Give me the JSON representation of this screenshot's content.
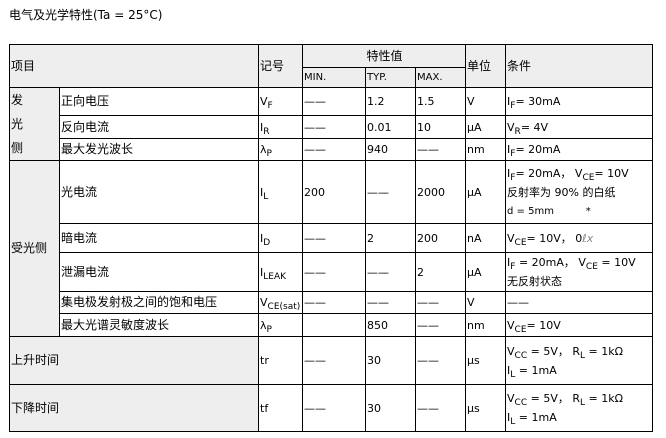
{
  "title": "电气及光学特性(Ta = 25°C)",
  "header": {
    "item": "项目",
    "symbol": "记号",
    "characteristic": "特性值",
    "min": "MIN.",
    "typ": "TYP.",
    "max": "MAX.",
    "unit": "单位",
    "condition": "条件"
  },
  "groups": {
    "emitter": "发\n光\n侧",
    "detector": "受光侧"
  },
  "rows": [
    {
      "group": "emitter",
      "item": "正向电压",
      "symbol": {
        "t": "V",
        "sub": "F"
      },
      "min": "——",
      "typ": "1.2",
      "max": "1.5",
      "unit": "V",
      "condition": [
        [
          {
            "t": "I"
          },
          {
            "sub": "F"
          },
          {
            "t": "= 30mA"
          }
        ]
      ]
    },
    {
      "group": "emitter",
      "item": "反向电流",
      "symbol": {
        "t": "I",
        "sub": "R"
      },
      "min": "——",
      "typ": "0.01",
      "max": "10",
      "unit": "μA",
      "condition": [
        [
          {
            "t": "V"
          },
          {
            "sub": "R"
          },
          {
            "t": "= 4V"
          }
        ]
      ]
    },
    {
      "group": "emitter",
      "item": "最大发光波长",
      "symbol": {
        "t": "λ",
        "sub": "P"
      },
      "min": "——",
      "typ": "940",
      "max": "——",
      "unit": "nm",
      "condition": [
        [
          {
            "t": "I"
          },
          {
            "sub": "F"
          },
          {
            "t": "= 20mA"
          }
        ]
      ]
    },
    {
      "group": "detector",
      "item": "光电流",
      "symbol": {
        "t": "I",
        "sub": "L"
      },
      "min": "200",
      "typ": "——",
      "max": "2000",
      "unit": "μA",
      "condition": [
        [
          {
            "t": "I"
          },
          {
            "sub": "F"
          },
          {
            "t": "= 20mA， V"
          },
          {
            "sub": "CE"
          },
          {
            "t": "= 10V"
          }
        ],
        [
          {
            "t": "反射率为 90% 的白纸"
          }
        ],
        [
          {
            "t": "d = 5mm          *"
          }
        ]
      ]
    },
    {
      "group": "detector",
      "item": "暗电流",
      "symbol": {
        "t": "I",
        "sub": "D"
      },
      "min": "——",
      "typ": "2",
      "max": "200",
      "unit": "nA",
      "condition": [
        [
          {
            "t": "V"
          },
          {
            "sub": "CE"
          },
          {
            "t": "= 10V， 0"
          },
          {
            "lx": "ℓx"
          }
        ]
      ]
    },
    {
      "group": "detector",
      "item": "泄漏电流",
      "symbol": {
        "t": "I",
        "sub": "LEAK"
      },
      "min": "——",
      "typ": "——",
      "max": "2",
      "unit": "μA",
      "condition": [
        [
          {
            "t": "I"
          },
          {
            "sub": "F"
          },
          {
            "t": " = 20mA， V"
          },
          {
            "sub": "CE"
          },
          {
            "t": " = 10V"
          }
        ],
        [
          {
            "t": "无反射状态"
          }
        ]
      ]
    },
    {
      "group": "detector",
      "item": "集电极发射极之间的饱和电压",
      "symbol": {
        "t": "V",
        "sub": "CE(sat)"
      },
      "min": "——",
      "typ": "——",
      "max": "——",
      "unit": "V",
      "condition": [
        [
          {
            "t": "——"
          }
        ]
      ]
    },
    {
      "group": "detector",
      "item": "最大光谱灵敏度波长",
      "symbol": {
        "t": "λ",
        "sub": "P"
      },
      "min": "",
      "typ": "850",
      "max": "——",
      "unit": "nm",
      "condition": [
        [
          {
            "t": "V"
          },
          {
            "sub": "CE"
          },
          {
            "t": "= 10V"
          }
        ]
      ]
    },
    {
      "group": "rise",
      "item": "上升时间",
      "symbol": {
        "t": "tr"
      },
      "min": "——",
      "typ": "30",
      "max": "——",
      "unit": "μs",
      "condition": [
        [
          {
            "t": "V"
          },
          {
            "sub": "CC"
          },
          {
            "t": " = 5V， R"
          },
          {
            "sub": "L"
          },
          {
            "t": " = 1kΩ"
          }
        ],
        [
          {
            "t": "I"
          },
          {
            "sub": "L"
          },
          {
            "t": " = 1mA"
          }
        ]
      ]
    },
    {
      "group": "fall",
      "item": "下降时间",
      "symbol": {
        "t": "tf"
      },
      "min": "——",
      "typ": "30",
      "max": "——",
      "unit": "μs",
      "condition": [
        [
          {
            "t": "V"
          },
          {
            "sub": "CC"
          },
          {
            "t": " = 5V， R"
          },
          {
            "sub": "L"
          },
          {
            "t": " = 1kΩ"
          }
        ],
        [
          {
            "t": "I"
          },
          {
            "sub": "L"
          },
          {
            "t": " = 1mA"
          }
        ]
      ]
    }
  ]
}
